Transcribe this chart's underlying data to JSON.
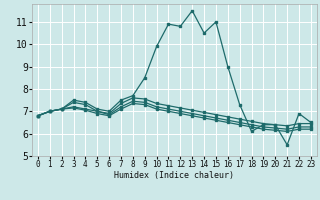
{
  "title": "",
  "xlabel": "Humidex (Indice chaleur)",
  "ylabel": "",
  "bg_color": "#cde8e8",
  "grid_color": "#b8d8d8",
  "line_color": "#1e6b6b",
  "x": [
    0,
    1,
    2,
    3,
    4,
    5,
    6,
    7,
    8,
    9,
    10,
    11,
    12,
    13,
    14,
    15,
    16,
    17,
    18,
    19,
    20,
    21,
    22,
    23
  ],
  "series": [
    [
      6.8,
      7.0,
      7.1,
      7.5,
      7.4,
      7.1,
      7.0,
      7.5,
      7.7,
      8.5,
      9.9,
      10.9,
      10.8,
      11.5,
      10.5,
      11.0,
      9.0,
      7.3,
      6.1,
      6.4,
      6.4,
      5.5,
      6.9,
      6.5
    ],
    [
      6.8,
      7.0,
      7.1,
      7.4,
      7.3,
      7.0,
      6.9,
      7.35,
      7.6,
      7.55,
      7.35,
      7.25,
      7.15,
      7.05,
      6.95,
      6.85,
      6.75,
      6.65,
      6.55,
      6.45,
      6.4,
      6.35,
      6.45,
      6.45
    ],
    [
      6.8,
      7.0,
      7.1,
      7.2,
      7.1,
      7.0,
      6.85,
      7.2,
      7.45,
      7.4,
      7.2,
      7.1,
      7.0,
      6.9,
      6.8,
      6.7,
      6.6,
      6.5,
      6.4,
      6.3,
      6.25,
      6.2,
      6.3,
      6.3
    ],
    [
      6.8,
      7.0,
      7.1,
      7.15,
      7.05,
      6.9,
      6.8,
      7.1,
      7.35,
      7.3,
      7.1,
      7.0,
      6.9,
      6.8,
      6.7,
      6.6,
      6.5,
      6.4,
      6.3,
      6.2,
      6.15,
      6.1,
      6.2,
      6.2
    ]
  ],
  "ylim": [
    5,
    11.8
  ],
  "yticks": [
    5,
    6,
    7,
    8,
    9,
    10,
    11
  ],
  "xlim": [
    -0.5,
    23.5
  ],
  "xticks": [
    0,
    1,
    2,
    3,
    4,
    5,
    6,
    7,
    8,
    9,
    10,
    11,
    12,
    13,
    14,
    15,
    16,
    17,
    18,
    19,
    20,
    21,
    22,
    23
  ]
}
